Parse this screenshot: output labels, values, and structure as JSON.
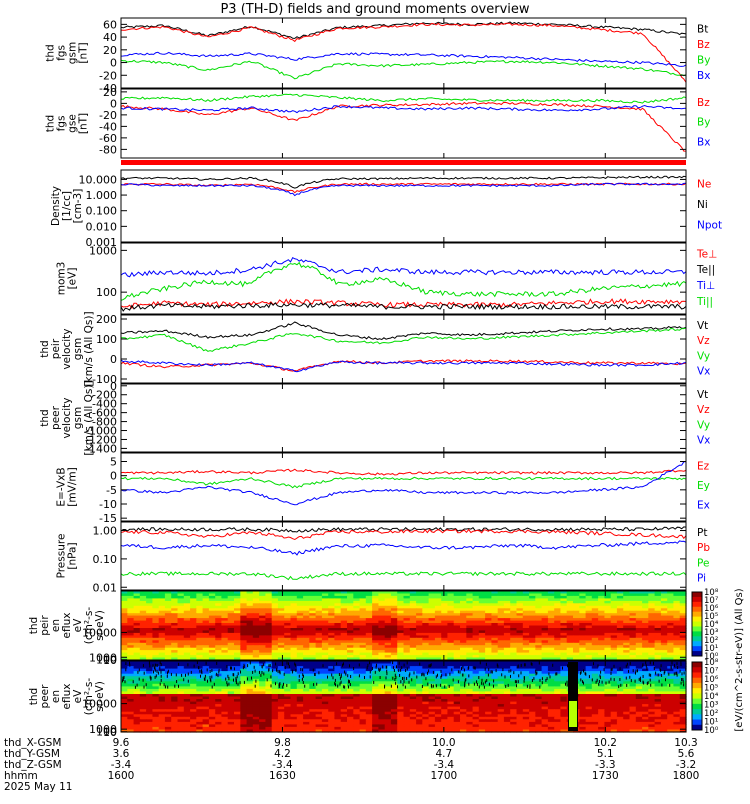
{
  "title": "P3 (TH-D) fields and ground moments overview",
  "colors": {
    "black": "#000000",
    "red": "#ff0000",
    "green": "#00dd00",
    "blue": "#0000ff"
  },
  "chart_data": [
    {
      "id": "fgs-gsm",
      "type": "line",
      "ylabel": [
        "thd",
        "fgs",
        "gsm",
        "[nT]"
      ],
      "ylim": [
        -40,
        70
      ],
      "yticks": [
        "60",
        "40",
        "20",
        "0",
        "-20",
        "-40"
      ],
      "ytick_values": [
        60,
        40,
        20,
        0,
        -20,
        -40
      ],
      "series": [
        {
          "name": "Bt",
          "color": "black",
          "values": [
            55,
            58,
            42,
            57,
            38,
            55,
            58,
            62,
            60,
            62,
            60,
            56,
            52,
            44
          ]
        },
        {
          "name": "Bz",
          "color": "red",
          "values": [
            52,
            56,
            40,
            55,
            35,
            54,
            56,
            60,
            59,
            60,
            58,
            52,
            46,
            -30
          ]
        },
        {
          "name": "By",
          "color": "green",
          "values": [
            3,
            0,
            -12,
            2,
            -25,
            -2,
            -5,
            -3,
            0,
            2,
            0,
            -5,
            -10,
            -20
          ]
        },
        {
          "name": "Bx",
          "color": "blue",
          "values": [
            12,
            15,
            10,
            14,
            5,
            14,
            13,
            12,
            10,
            8,
            5,
            2,
            0,
            -5
          ]
        }
      ]
    },
    {
      "id": "fgs-gse",
      "type": "line",
      "ylabel": [
        "thd",
        "fgs",
        "gse",
        "[nT]"
      ],
      "ylim": [
        -95,
        25
      ],
      "yticks": [
        "20",
        "0",
        "-20",
        "-40",
        "-60",
        "-80"
      ],
      "ytick_values": [
        20,
        0,
        -20,
        -40,
        -60,
        -80
      ],
      "series": [
        {
          "name": "Bz",
          "color": "red",
          "values": [
            -5,
            -10,
            -20,
            -8,
            -30,
            -5,
            -3,
            -2,
            0,
            0,
            -2,
            -5,
            -10,
            -85
          ]
        },
        {
          "name": "By",
          "color": "green",
          "values": [
            8,
            10,
            5,
            12,
            15,
            10,
            5,
            8,
            6,
            5,
            5,
            5,
            2,
            10
          ]
        },
        {
          "name": "Bx",
          "color": "blue",
          "values": [
            -8,
            -10,
            -12,
            -8,
            -15,
            -5,
            -8,
            -10,
            -8,
            -10,
            -12,
            -10,
            -5,
            -10
          ]
        }
      ]
    },
    {
      "id": "density",
      "type": "line",
      "log": true,
      "ylabel": [
        "Density",
        "[1/cc]",
        "[cm-3]"
      ],
      "ylim": [
        0.001,
        40
      ],
      "yticks": [
        "10.000",
        "1.000",
        "0.100",
        "0.010",
        "0.001"
      ],
      "ytick_values": [
        10,
        1,
        0.1,
        0.01,
        0.001
      ],
      "series": [
        {
          "name": "Ne",
          "color": "red",
          "values": [
            5,
            5,
            4,
            5,
            1.5,
            5,
            5,
            5,
            5,
            5,
            5,
            5,
            5,
            5
          ]
        },
        {
          "name": "Ni",
          "color": "black",
          "values": [
            12,
            12,
            10,
            12,
            3,
            11,
            11,
            12,
            12,
            12,
            12,
            13,
            14,
            14
          ]
        },
        {
          "name": "Npot",
          "color": "blue",
          "values": [
            5,
            4,
            4,
            4,
            1,
            4,
            4,
            4,
            4,
            4,
            4,
            5,
            5,
            5
          ]
        }
      ]
    },
    {
      "id": "moms",
      "type": "line",
      "log": true,
      "ylabel": [
        "mom3",
        "[eV]"
      ],
      "ylim": [
        30,
        1500
      ],
      "yticks": [
        "1000",
        "100"
      ],
      "ytick_values": [
        1000,
        100
      ],
      "series": [
        {
          "name": "Te⊥",
          "color": "red",
          "values": [
            45,
            55,
            50,
            55,
            60,
            55,
            50,
            50,
            50,
            50,
            55,
            60,
            60,
            60
          ]
        },
        {
          "name": "Te||",
          "color": "black",
          "values": [
            40,
            48,
            45,
            48,
            50,
            48,
            45,
            45,
            45,
            45,
            45,
            45,
            45,
            45
          ]
        },
        {
          "name": "Ti⊥",
          "color": "blue",
          "values": [
            250,
            300,
            280,
            350,
            600,
            300,
            350,
            300,
            300,
            300,
            300,
            300,
            300,
            300
          ]
        },
        {
          "name": "Ti||",
          "color": "green",
          "values": [
            70,
            120,
            180,
            150,
            500,
            150,
            200,
            100,
            90,
            90,
            90,
            120,
            140,
            160
          ]
        }
      ]
    },
    {
      "id": "peir-vel",
      "type": "line",
      "ylabel": [
        "thd",
        "peir",
        "velocity",
        "gsm",
        "[km/s (All Qs)]"
      ],
      "ylim": [
        -120,
        220
      ],
      "yticks": [
        "200",
        "100",
        "0",
        "-100"
      ],
      "ytick_values": [
        200,
        100,
        0,
        -100
      ],
      "series": [
        {
          "name": "Vt",
          "color": "black",
          "values": [
            130,
            140,
            110,
            120,
            180,
            120,
            100,
            130,
            120,
            130,
            140,
            150,
            150,
            160
          ]
        },
        {
          "name": "Vz",
          "color": "red",
          "values": [
            -20,
            -40,
            -30,
            -20,
            -60,
            -10,
            -20,
            -10,
            -10,
            -10,
            -15,
            -20,
            -20,
            -25
          ]
        },
        {
          "name": "Vy",
          "color": "green",
          "values": [
            100,
            120,
            40,
            80,
            130,
            90,
            80,
            110,
            100,
            110,
            120,
            130,
            140,
            150
          ]
        },
        {
          "name": "Vx",
          "color": "blue",
          "values": [
            -10,
            -20,
            -30,
            -20,
            -60,
            -15,
            -20,
            -20,
            -20,
            -20,
            -25,
            -30,
            -30,
            -20
          ]
        }
      ]
    },
    {
      "id": "peer-vel",
      "type": "line",
      "ylabel": [
        "thd",
        "peer",
        "velocity",
        "gsm",
        "[km/s (All Qs)]"
      ],
      "ylim": [
        -1480,
        40
      ],
      "yticks": [
        "0",
        "-200",
        "-400",
        "-600",
        "-800",
        "-1000",
        "-1200",
        "-1400"
      ],
      "ytick_values": [
        0,
        -200,
        -400,
        -600,
        -800,
        -1000,
        -1200,
        -1400
      ],
      "series": [
        {
          "name": "Vt",
          "color": "black",
          "values": []
        },
        {
          "name": "Vz",
          "color": "red",
          "values": []
        },
        {
          "name": "Vy",
          "color": "green",
          "values": []
        },
        {
          "name": "Vx",
          "color": "blue",
          "values": []
        }
      ]
    },
    {
      "id": "efield",
      "type": "line",
      "ylabel": [
        "E=-VxB",
        "[mV/m]"
      ],
      "ylim": [
        -16,
        8
      ],
      "yticks": [
        "5",
        "0",
        "-5",
        "-10",
        "-15"
      ],
      "ytick_values": [
        5,
        0,
        -5,
        -10,
        -15
      ],
      "series": [
        {
          "name": "Ez",
          "color": "red",
          "values": [
            1,
            1,
            1.5,
            1,
            2,
            1,
            0.5,
            1,
            1,
            1,
            1,
            1,
            1,
            2
          ]
        },
        {
          "name": "Ey",
          "color": "green",
          "values": [
            -1,
            -1,
            -3,
            -1,
            -4,
            -1,
            -1,
            -1,
            -1,
            -1,
            -1,
            -1,
            -1,
            -1
          ]
        },
        {
          "name": "Ex",
          "color": "blue",
          "values": [
            -5,
            -6,
            -4,
            -6,
            -10,
            -6,
            -5,
            -6,
            -6,
            -6,
            -6,
            -5,
            -4,
            5
          ]
        }
      ]
    },
    {
      "id": "pressure",
      "type": "line",
      "log": true,
      "ylabel": [
        "Pressure",
        "[nPa]"
      ],
      "ylim": [
        0.008,
        2
      ],
      "yticks": [
        "1.00",
        "0.10",
        "0.01"
      ],
      "ytick_values": [
        1,
        0.1,
        0.01
      ],
      "series": [
        {
          "name": "Pt",
          "color": "black",
          "values": [
            1.1,
            1.1,
            1.1,
            1.1,
            1.0,
            1.1,
            1.1,
            1.1,
            1.1,
            1.1,
            1.1,
            1.1,
            1.1,
            1.2
          ]
        },
        {
          "name": "Pb",
          "color": "red",
          "values": [
            0.9,
            0.85,
            0.6,
            0.85,
            0.5,
            0.9,
            0.9,
            0.95,
            0.95,
            0.95,
            0.9,
            0.8,
            0.7,
            0.6
          ]
        },
        {
          "name": "Pe",
          "color": "green",
          "values": [
            0.03,
            0.03,
            0.03,
            0.03,
            0.02,
            0.03,
            0.03,
            0.03,
            0.03,
            0.03,
            0.03,
            0.03,
            0.03,
            0.03
          ]
        },
        {
          "name": "Pi",
          "color": "blue",
          "values": [
            0.3,
            0.25,
            0.3,
            0.25,
            0.15,
            0.28,
            0.3,
            0.25,
            0.25,
            0.3,
            0.25,
            0.3,
            0.35,
            0.4
          ]
        }
      ]
    },
    {
      "id": "peir-en",
      "type": "heatmap",
      "ylabel": [
        "thd",
        "peir",
        "en",
        "eflux",
        "eV",
        "(cm²-s-",
        "sr-eV)"
      ],
      "ylim": [
        7,
        25000
      ],
      "yticks": [
        "10000",
        "1000",
        "100",
        "10"
      ],
      "ytick_values": [
        10000,
        1000,
        100,
        10
      ]
    },
    {
      "id": "peer-en",
      "type": "heatmap",
      "ylabel": [
        "thd",
        "peer",
        "en",
        "eflux",
        "eV",
        "(cm²-s-",
        "sr-eV)"
      ],
      "ylim": [
        7,
        25000
      ],
      "yticks": [
        "10000",
        "1000",
        "100",
        "10"
      ],
      "ytick_values": [
        10000,
        1000,
        100,
        10
      ]
    }
  ],
  "colorbar": {
    "label": "[eV/(cm^2-s-str-eV)] (All Qs)",
    "top_ticks": [
      "10⁸",
      "10⁷",
      "10⁶",
      "10⁵",
      "10⁴",
      "10³",
      "10²",
      "10¹",
      "10⁰"
    ],
    "bottom_ticks": [
      "10⁸",
      "10⁷",
      "10⁶",
      "10⁵",
      "10⁴",
      "10³",
      "10²",
      "10¹",
      "10⁰"
    ]
  },
  "xaxis": {
    "ticks": [
      {
        "label": "9.6",
        "x": 9.6
      },
      {
        "label": "9.8",
        "x": 9.8
      },
      {
        "label": "10.0",
        "x": 10.0
      },
      {
        "label": "10.2",
        "x": 10.2
      },
      {
        "label": "10.3",
        "x": 10.3
      }
    ],
    "rows": [
      {
        "label": "thd_X-GSM",
        "values": [
          "9.6",
          "9.8",
          "10.0",
          "10.2",
          "10.3"
        ]
      },
      {
        "label": "thd_Y-GSM",
        "values": [
          "3.6",
          "4.2",
          "4.7",
          "5.1",
          "5.6"
        ]
      },
      {
        "label": "thd_Z-GSM",
        "values": [
          "-3.4",
          "-3.4",
          "-3.4",
          "-3.3",
          "-3.2"
        ]
      },
      {
        "label": "hhmm",
        "values": [
          "1600",
          "1630",
          "1700",
          "1730",
          "1800"
        ]
      }
    ],
    "date": "2025 May 11",
    "xlim": [
      9.6,
      10.3
    ]
  }
}
